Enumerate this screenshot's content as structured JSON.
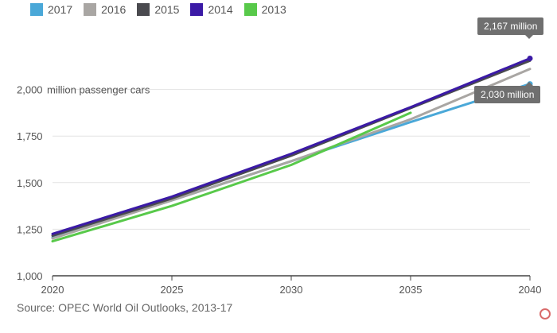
{
  "legend": [
    {
      "label": "2017",
      "color": "#4aa8d8"
    },
    {
      "label": "2016",
      "color": "#a9a6a3"
    },
    {
      "label": "2015",
      "color": "#4a4a4f"
    },
    {
      "label": "2014",
      "color": "#3b1aa6"
    },
    {
      "label": "2013",
      "color": "#58c94a"
    }
  ],
  "source": "Source: OPEC World Oil Outlooks, 2013-17",
  "callouts": {
    "top": "2,167 million",
    "bottom": "2,030 million"
  },
  "chart_data": {
    "type": "line",
    "ylabel": "million passenger cars",
    "ylim": [
      1000,
      2250
    ],
    "xlim": [
      2020,
      2040
    ],
    "yticks": [
      1000,
      1250,
      1500,
      1750,
      2000
    ],
    "ytick_labels": [
      "1,000",
      "1,250",
      "1,500",
      "1,750",
      "2,000"
    ],
    "xticks": [
      2020,
      2025,
      2030,
      2035,
      2040
    ],
    "xtick_labels": [
      "2020",
      "2025",
      "2030",
      "2035",
      "2040"
    ],
    "grid": true,
    "legend_position": "top-left",
    "series": [
      {
        "name": "2017",
        "color": "#4aa8d8",
        "x": [
          2020,
          2025,
          2030,
          2035,
          2040
        ],
        "y": [
          1205,
          1405,
          1615,
          1825,
          2030
        ]
      },
      {
        "name": "2016",
        "color": "#a9a6a3",
        "x": [
          2020,
          2025,
          2030,
          2035,
          2040
        ],
        "y": [
          1200,
          1405,
          1615,
          1840,
          2110
        ]
      },
      {
        "name": "2015",
        "color": "#4a4a4f",
        "x": [
          2020,
          2025,
          2030,
          2035,
          2040
        ],
        "y": [
          1215,
          1415,
          1645,
          1900,
          2155
        ]
      },
      {
        "name": "2014",
        "color": "#3b1aa6",
        "x": [
          2020,
          2025,
          2030,
          2035,
          2040
        ],
        "y": [
          1225,
          1425,
          1655,
          1905,
          2167
        ]
      },
      {
        "name": "2013",
        "color": "#58c94a",
        "x": [
          2020,
          2025,
          2030,
          2035
        ],
        "y": [
          1185,
          1375,
          1595,
          1875
        ]
      }
    ]
  }
}
